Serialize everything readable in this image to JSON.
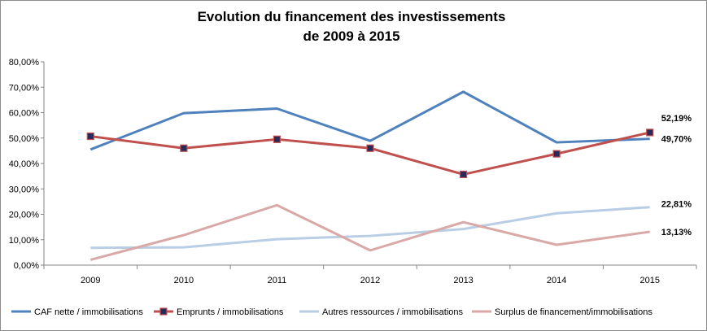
{
  "chart_data": {
    "type": "line",
    "title_lines": [
      "Evolution du financement des investissements",
      "de 2009 à 2015"
    ],
    "categories": [
      "2009",
      "2010",
      "2011",
      "2012",
      "2013",
      "2014",
      "2015"
    ],
    "ylim": [
      0,
      80
    ],
    "yticks": [
      "0,00%",
      "10,00%",
      "20,00%",
      "30,00%",
      "40,00%",
      "50,00%",
      "60,00%",
      "70,00%",
      "80,00%"
    ],
    "grid": false,
    "legend_position": "bottom",
    "series": [
      {
        "name": "CAF nette / immobilisations",
        "color": "#4f81bd",
        "marker": false,
        "values": [
          45.5,
          59.8,
          61.6,
          48.9,
          68.2,
          48.3,
          49.7
        ],
        "end_label": "49,70%"
      },
      {
        "name": "Emprunts / immobilisations",
        "color": "#c0504d",
        "marker": true,
        "values": [
          50.7,
          46.0,
          49.5,
          46.0,
          35.7,
          43.8,
          52.19
        ],
        "end_label": "52,19%"
      },
      {
        "name": "Autres ressources / immobilisations",
        "color": "#b9cde5",
        "marker": false,
        "values": [
          6.8,
          7.0,
          10.2,
          11.5,
          14.2,
          20.4,
          22.81
        ],
        "end_label": "22,81%"
      },
      {
        "name": "Surplus de financement/immobilisations",
        "color": "#d9a9a8",
        "marker": false,
        "values": [
          2.1,
          11.8,
          23.6,
          5.8,
          16.9,
          8.0,
          13.13
        ],
        "end_label": "13,13%"
      }
    ]
  }
}
